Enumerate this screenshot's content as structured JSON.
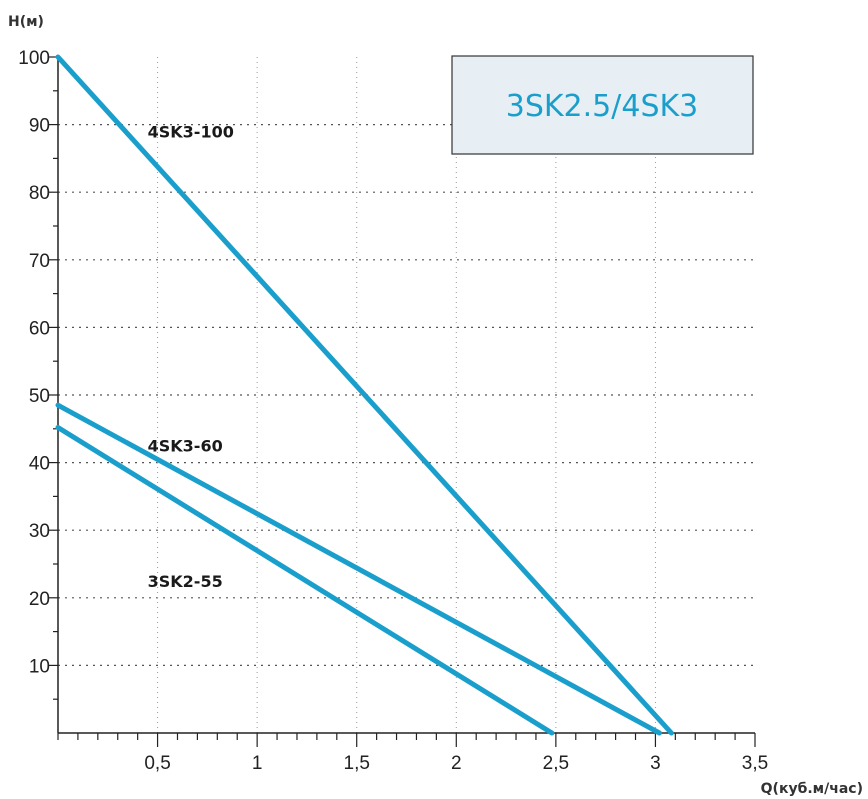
{
  "chart_data": {
    "type": "line",
    "title": "3SK2.5/4SK3",
    "xlabel": "Q(куб.м/час)",
    "ylabel": "H(м)",
    "xlim": [
      0,
      3.5
    ],
    "ylim": [
      0,
      100
    ],
    "x_ticks": [
      {
        "value": 0.5,
        "label": "0,5"
      },
      {
        "value": 1,
        "label": "1"
      },
      {
        "value": 1.5,
        "label": "1,5"
      },
      {
        "value": 2,
        "label": "2"
      },
      {
        "value": 2.5,
        "label": "2,5"
      },
      {
        "value": 3,
        "label": "3"
      },
      {
        "value": 3.5,
        "label": "3,5"
      }
    ],
    "y_ticks": [
      {
        "value": 10,
        "label": "10"
      },
      {
        "value": 20,
        "label": "20"
      },
      {
        "value": 30,
        "label": "30"
      },
      {
        "value": 40,
        "label": "40"
      },
      {
        "value": 50,
        "label": "50"
      },
      {
        "value": 60,
        "label": "60"
      },
      {
        "value": 70,
        "label": "70"
      },
      {
        "value": 80,
        "label": "80"
      },
      {
        "value": 90,
        "label": "90"
      },
      {
        "value": 100,
        "label": "100"
      }
    ],
    "grid": true,
    "series": [
      {
        "name": "4SK3-100",
        "points": [
          [
            0,
            100
          ],
          [
            3.08,
            0
          ]
        ]
      },
      {
        "name": "4SK3-60",
        "points": [
          [
            0,
            48.5
          ],
          [
            3.02,
            0
          ]
        ]
      },
      {
        "name": "3SK2-55",
        "points": [
          [
            0,
            45.2
          ],
          [
            2.48,
            0
          ]
        ]
      }
    ],
    "colors": {
      "series": "#1a9fcc",
      "title_text": "#1a9fcc",
      "title_bg": "#e8eff4"
    }
  }
}
